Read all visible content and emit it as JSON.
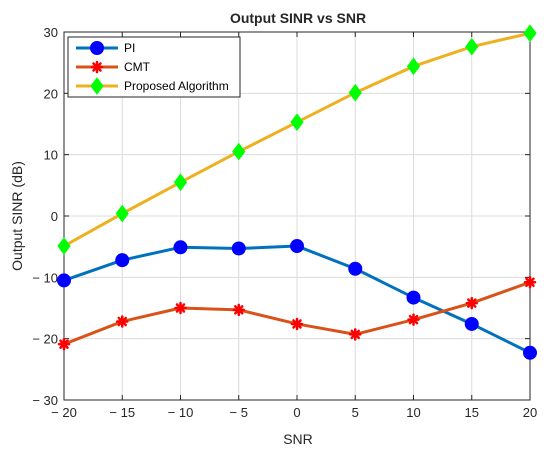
{
  "chart_data": {
    "type": "line",
    "title": "Output SINR vs SNR",
    "xlabel": "SNR",
    "ylabel": "Output SINR (dB)",
    "xlim": [
      -20,
      20
    ],
    "ylim": [
      -30,
      30
    ],
    "xticks": [
      -20,
      -15,
      -10,
      -5,
      0,
      5,
      10,
      15,
      20
    ],
    "xtick_labels": [
      "− 20",
      "− 15",
      "− 10",
      "− 5",
      "0",
      "5",
      "10",
      "15",
      "20"
    ],
    "yticks": [
      -30,
      -20,
      -10,
      0,
      10,
      20,
      30
    ],
    "ytick_labels": [
      "− 30",
      "− 20",
      "− 10",
      "0",
      "10",
      "20",
      "30"
    ],
    "grid": true,
    "legend_position": "top-left",
    "x": [
      -20,
      -15,
      -10,
      -5,
      0,
      5,
      10,
      15,
      20
    ],
    "series": [
      {
        "name": "PI",
        "color": "#0072BD",
        "marker": "circle",
        "marker_color": "#0000FF",
        "values": [
          -10.5,
          -7.2,
          -5.1,
          -5.3,
          -4.9,
          -8.6,
          -13.3,
          -17.6,
          -22.3
        ]
      },
      {
        "name": "CMT",
        "color": "#D95319",
        "marker": "asterisk",
        "marker_color": "#FF0000",
        "values": [
          -20.9,
          -17.2,
          -15.0,
          -15.3,
          -17.6,
          -19.3,
          -16.9,
          -14.2,
          -10.8
        ]
      },
      {
        "name": "Proposed Algorithm",
        "color": "#EDB120",
        "marker": "diamond",
        "marker_color": "#00FF00",
        "values": [
          -4.9,
          0.4,
          5.5,
          10.5,
          15.3,
          20.1,
          24.4,
          27.6,
          29.8
        ]
      }
    ]
  }
}
